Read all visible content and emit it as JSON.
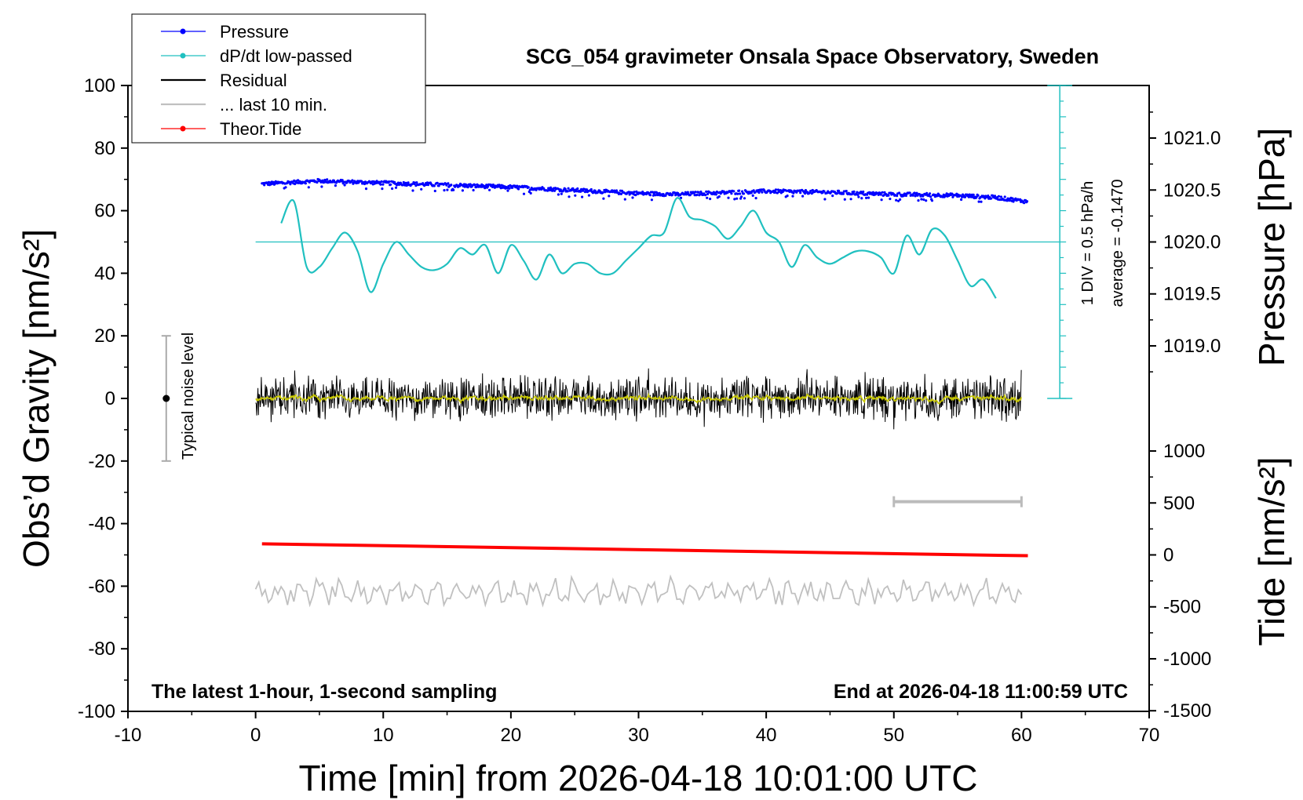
{
  "chart_data": {
    "type": "line",
    "title": "SCG_054 gravimeter Onsala Space Observatory, Sweden",
    "xlabel": "Time [min] from 2026-04-18 10:01:00 UTC",
    "ylabel_left": "Obs’d Gravity [nm/s²]",
    "ylabel_right_top": "Pressure [hPa]",
    "ylabel_right_bottom": "Tide [nm/s²]",
    "xlim": [
      -10,
      70
    ],
    "ylim_left": [
      -100,
      100
    ],
    "pressure_range": [
      1018.5,
      1021.5
    ],
    "tide_range": [
      -1500,
      1000
    ],
    "x_ticks": [
      "-10",
      "0",
      "10",
      "20",
      "30",
      "40",
      "50",
      "60",
      "70"
    ],
    "y_ticks_left": [
      "100",
      "80",
      "60",
      "40",
      "20",
      "0",
      "-20",
      "-40",
      "-60",
      "-80",
      "-100"
    ],
    "pressure_ticks": [
      "1021.0",
      "1020.5",
      "1020.0",
      "1019.5",
      "1019.0"
    ],
    "tide_ticks": [
      "1000",
      "500",
      "0",
      "-500",
      "-1000",
      "-1500"
    ],
    "legend": {
      "position": "top-left",
      "entries": [
        {
          "label": "Pressure",
          "color": "#0000ff",
          "style": "line-dot"
        },
        {
          "label": "dP/dt low-passed",
          "color": "#20c0c0",
          "style": "line-dot"
        },
        {
          "label": "Residual",
          "color": "#000000",
          "style": "line"
        },
        {
          "label": "... last 10 min.",
          "color": "#c0c0c0",
          "style": "line"
        },
        {
          "label": "Theor.Tide",
          "color": "#ff0000",
          "style": "line-dot"
        }
      ]
    },
    "annotations": {
      "noise_level": "Typical noise level",
      "div_scale": "1 DIV = 0.5 hPa/h",
      "average": "average = -0.1470",
      "bottom_left": "The latest 1-hour, 1-second sampling",
      "bottom_right": "End at 2026-04-18 11:00:59 UTC"
    },
    "noise_bar": {
      "x": -7,
      "center": 0,
      "low": -20,
      "high": 20
    },
    "ten_min_bar": {
      "x_start": 50,
      "x_end": 60
    },
    "series": [
      {
        "name": "Pressure",
        "unit": "hPa",
        "x": [
          0.5,
          5,
          10,
          15,
          20,
          25,
          30,
          33,
          35,
          40,
          45,
          50,
          55,
          58,
          60.5
        ],
        "values": [
          1020.56,
          1020.59,
          1020.57,
          1020.55,
          1020.53,
          1020.5,
          1020.47,
          1020.46,
          1020.47,
          1020.49,
          1020.48,
          1020.46,
          1020.45,
          1020.43,
          1020.39
        ]
      },
      {
        "name": "dP/dt low-passed",
        "unit": "nm/s² (plot scale)",
        "x": [
          2,
          3,
          4,
          5,
          6,
          7,
          8,
          9,
          10,
          11,
          12,
          13,
          14,
          15,
          16,
          17,
          18,
          19,
          20,
          21,
          22,
          23,
          24,
          25,
          26,
          27,
          28,
          29,
          30,
          31,
          32,
          33,
          34,
          35,
          36,
          37,
          38,
          39,
          40,
          41,
          42,
          43,
          44,
          45,
          46,
          47,
          48,
          49,
          50,
          51,
          52,
          53,
          54,
          55,
          56,
          57,
          58
        ],
        "values": [
          56,
          63,
          42,
          42,
          48,
          53,
          47,
          34,
          43,
          50,
          46,
          42,
          41,
          43,
          48,
          46,
          49,
          40,
          49,
          44,
          38,
          46,
          40,
          43,
          43,
          40,
          40,
          44,
          48,
          52,
          53,
          64,
          58,
          57,
          55,
          51,
          55,
          60,
          53,
          50,
          42,
          49,
          45,
          43,
          45,
          47,
          47,
          45,
          40,
          52,
          46,
          54,
          52,
          44,
          36,
          38,
          32
        ]
      },
      {
        "name": "Residual",
        "unit": "nm/s²",
        "x_range": [
          0,
          60
        ],
        "amplitude_range": [
          -10,
          10
        ],
        "center": 0
      },
      {
        "name": "... last 10 min.",
        "unit": "nm/s² (offset)",
        "x_range": [
          0,
          60
        ],
        "center": -62,
        "amplitude_range": [
          -66,
          -53
        ]
      },
      {
        "name": "Theor.Tide",
        "unit": "nm/s²",
        "x": [
          0.5,
          60.5
        ],
        "values": [
          107,
          -8
        ]
      }
    ]
  }
}
